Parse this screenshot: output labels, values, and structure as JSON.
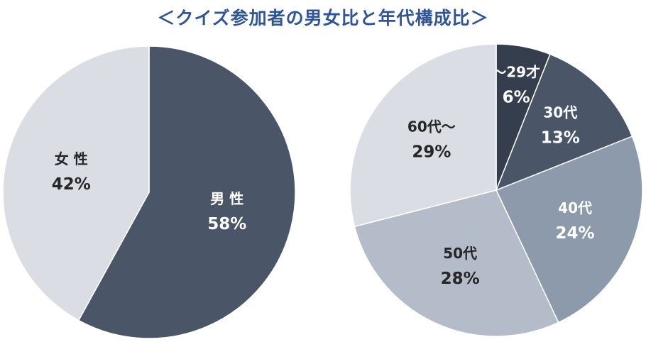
{
  "title": "＜クイズ参加者の男女比と年代構成比＞",
  "colors": {
    "title": "#2F5597",
    "dark_text": "#262626",
    "light_text": "#ffffff",
    "slice_edge": "#ffffff"
  },
  "chart_data": [
    {
      "type": "pie",
      "title": "",
      "start_angle_deg": 0,
      "direction": "clockwise",
      "slices": [
        {
          "label": "男 性",
          "value": 58,
          "value_label": "58%",
          "color": "#4A5568",
          "text_color": "#ffffff"
        },
        {
          "label": "女 性",
          "value": 42,
          "value_label": "42%",
          "color": "#DADDE3",
          "text_color": "#262626"
        }
      ]
    },
    {
      "type": "pie",
      "title": "",
      "start_angle_deg": 0,
      "direction": "clockwise",
      "slices": [
        {
          "label": "～29才",
          "value": 6,
          "value_label": "6%",
          "color": "#353E4D",
          "text_color": "#ffffff"
        },
        {
          "label": "30代",
          "value": 13,
          "value_label": "13%",
          "color": "#4A5568",
          "text_color": "#ffffff"
        },
        {
          "label": "40代",
          "value": 24,
          "value_label": "24%",
          "color": "#8C9AAB",
          "text_color": "#ffffff"
        },
        {
          "label": "50代",
          "value": 28,
          "value_label": "28%",
          "color": "#B4BCC9",
          "text_color": "#262626"
        },
        {
          "label": "60代～",
          "value": 29,
          "value_label": "29%",
          "color": "#DADDE3",
          "text_color": "#262626"
        }
      ]
    }
  ]
}
